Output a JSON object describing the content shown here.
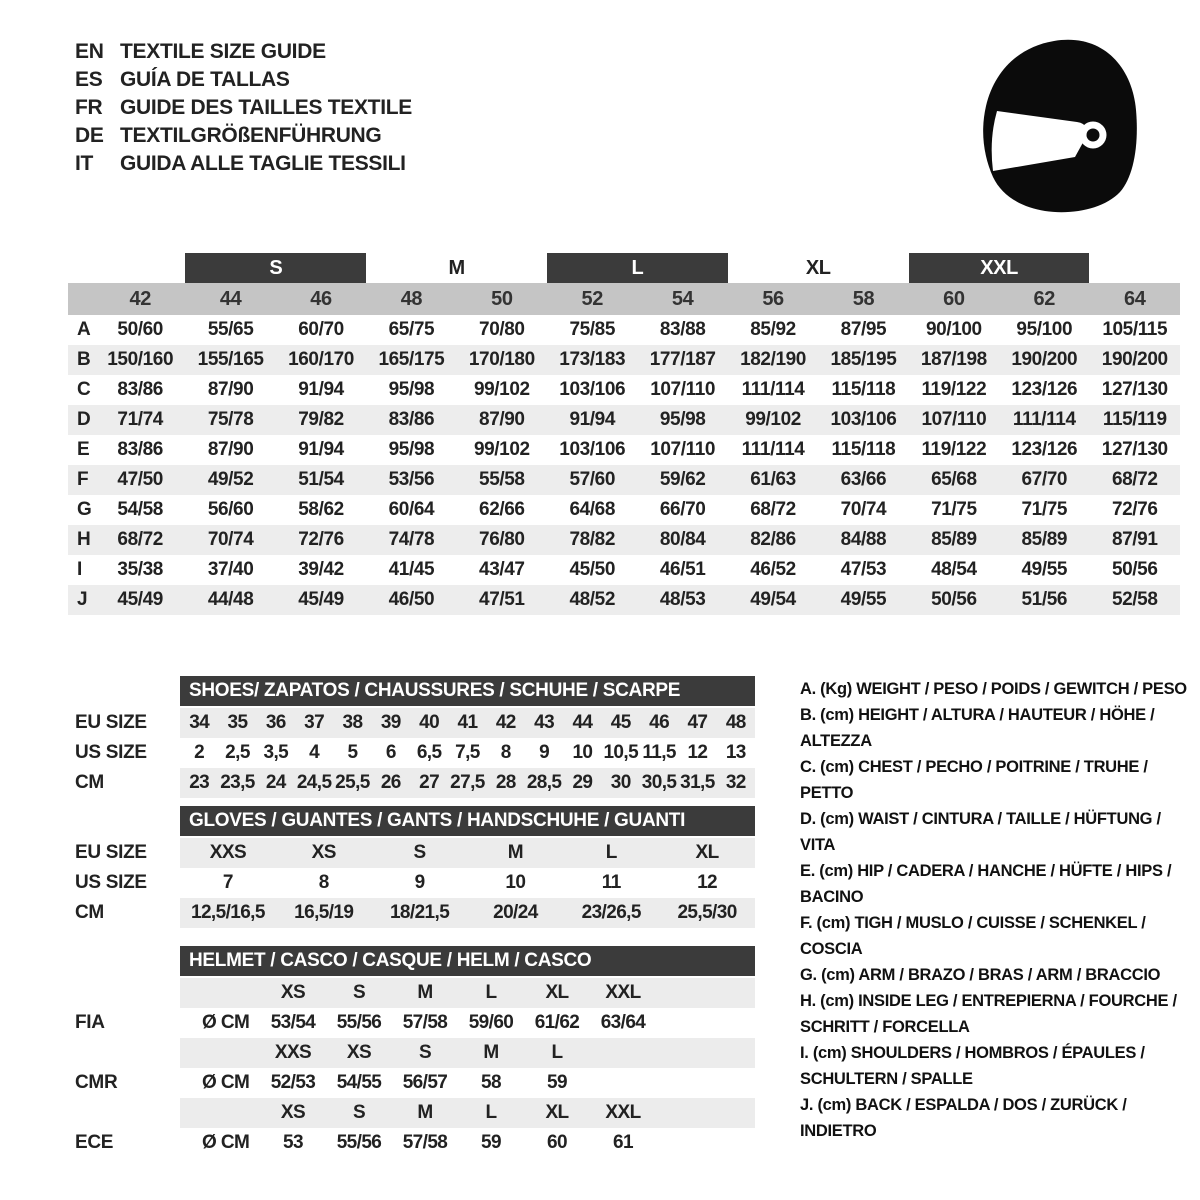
{
  "colors": {
    "dark_bar": "#3b3b3b",
    "gray_band": "#c5c5c5",
    "row_shade": "#ededed",
    "helmet_icon": "#0b0b0b"
  },
  "languages": [
    {
      "code": "EN",
      "title": "TEXTILE SIZE GUIDE"
    },
    {
      "code": "ES",
      "title": "GUÍA DE TALLAS"
    },
    {
      "code": "FR",
      "title": "GUIDE DES TAILLES TEXTILE"
    },
    {
      "code": "DE",
      "title": "TEXTILGRÖßENFÜHRUNG"
    },
    {
      "code": "IT",
      "title": "GUIDA ALLE TAGLIE TESSILI"
    }
  ],
  "helmet_icon_name": "full-face-helmet-icon",
  "main_table": {
    "size_bands": [
      {
        "label": "",
        "span": 2,
        "dark": false
      },
      {
        "label": "S",
        "span": 2,
        "dark": true
      },
      {
        "label": "M",
        "span": 2,
        "dark": false
      },
      {
        "label": "L",
        "span": 2,
        "dark": true
      },
      {
        "label": "XL",
        "span": 2,
        "dark": false
      },
      {
        "label": "XXL",
        "span": 2,
        "dark": true
      },
      {
        "label": "",
        "span": 1,
        "dark": false
      }
    ],
    "columns": [
      "42",
      "44",
      "46",
      "48",
      "50",
      "52",
      "54",
      "56",
      "58",
      "60",
      "62",
      "64"
    ],
    "rows": [
      {
        "letter": "A",
        "values": [
          "50/60",
          "55/65",
          "60/70",
          "65/75",
          "70/80",
          "75/85",
          "83/88",
          "85/92",
          "87/95",
          "90/100",
          "95/100",
          "105/115"
        ]
      },
      {
        "letter": "B",
        "values": [
          "150/160",
          "155/165",
          "160/170",
          "165/175",
          "170/180",
          "173/183",
          "177/187",
          "182/190",
          "185/195",
          "187/198",
          "190/200",
          "190/200"
        ]
      },
      {
        "letter": "C",
        "values": [
          "83/86",
          "87/90",
          "91/94",
          "95/98",
          "99/102",
          "103/106",
          "107/110",
          "111/114",
          "115/118",
          "119/122",
          "123/126",
          "127/130"
        ]
      },
      {
        "letter": "D",
        "values": [
          "71/74",
          "75/78",
          "79/82",
          "83/86",
          "87/90",
          "91/94",
          "95/98",
          "99/102",
          "103/106",
          "107/110",
          "111/114",
          "115/119"
        ]
      },
      {
        "letter": "E",
        "values": [
          "83/86",
          "87/90",
          "91/94",
          "95/98",
          "99/102",
          "103/106",
          "107/110",
          "111/114",
          "115/118",
          "119/122",
          "123/126",
          "127/130"
        ]
      },
      {
        "letter": "F",
        "values": [
          "47/50",
          "49/52",
          "51/54",
          "53/56",
          "55/58",
          "57/60",
          "59/62",
          "61/63",
          "63/66",
          "65/68",
          "67/70",
          "68/72"
        ]
      },
      {
        "letter": "G",
        "values": [
          "54/58",
          "56/60",
          "58/62",
          "60/64",
          "62/66",
          "64/68",
          "66/70",
          "68/72",
          "70/74",
          "71/75",
          "71/75",
          "72/76"
        ]
      },
      {
        "letter": "H",
        "values": [
          "68/72",
          "70/74",
          "72/76",
          "74/78",
          "76/80",
          "78/82",
          "80/84",
          "82/86",
          "84/88",
          "85/89",
          "85/89",
          "87/91"
        ]
      },
      {
        "letter": "I",
        "values": [
          "35/38",
          "37/40",
          "39/42",
          "41/45",
          "43/47",
          "45/50",
          "46/51",
          "46/52",
          "47/53",
          "48/54",
          "49/55",
          "50/56"
        ]
      },
      {
        "letter": "J",
        "values": [
          "45/49",
          "44/48",
          "45/49",
          "46/50",
          "47/51",
          "48/52",
          "48/53",
          "49/54",
          "49/55",
          "50/56",
          "51/56",
          "52/58"
        ]
      }
    ]
  },
  "shoes": {
    "title": "SHOES/ ZAPATOS / CHAUSSURES / SCHUHE / SCARPE",
    "rows": [
      {
        "label": "EU SIZE",
        "shaded": true,
        "cells": [
          "34",
          "35",
          "36",
          "37",
          "38",
          "39",
          "40",
          "41",
          "42",
          "43",
          "44",
          "45",
          "46",
          "47",
          "48"
        ]
      },
      {
        "label": "US SIZE",
        "shaded": false,
        "cells": [
          "2",
          "2,5",
          "3,5",
          "4",
          "5",
          "6",
          "6,5",
          "7,5",
          "8",
          "9",
          "10",
          "10,5",
          "11,5",
          "12",
          "13"
        ]
      },
      {
        "label": "CM",
        "shaded": true,
        "cells": [
          "23",
          "23,5",
          "24",
          "24,5",
          "25,5",
          "26",
          "27",
          "27,5",
          "28",
          "28,5",
          "29",
          "30",
          "30,5",
          "31,5",
          "32"
        ]
      }
    ]
  },
  "gloves": {
    "title": "GLOVES / GUANTES / GANTS / HANDSCHUHE / GUANTI",
    "rows": [
      {
        "label": "EU SIZE",
        "shaded": true,
        "cells": [
          "XXS",
          "XS",
          "S",
          "M",
          "L",
          "XL"
        ]
      },
      {
        "label": "US SIZE",
        "shaded": false,
        "cells": [
          "7",
          "8",
          "9",
          "10",
          "11",
          "12"
        ]
      },
      {
        "label": "CM",
        "shaded": true,
        "cells": [
          "12,5/16,5",
          "16,5/19",
          "18/21,5",
          "20/24",
          "23/26,5",
          "25,5/30"
        ]
      }
    ]
  },
  "helmet": {
    "title": "HELMET / CASCO / CASQUE / HELM / CASCO",
    "rows": [
      {
        "label": "",
        "first": "",
        "shaded": true,
        "cells": [
          "XS",
          "S",
          "M",
          "L",
          "XL",
          "XXL"
        ]
      },
      {
        "label": "FIA",
        "first": "Ø CM",
        "shaded": false,
        "cells": [
          "53/54",
          "55/56",
          "57/58",
          "59/60",
          "61/62",
          "63/64"
        ]
      },
      {
        "label": "",
        "first": "",
        "shaded": true,
        "cells": [
          "XXS",
          "XS",
          "S",
          "M",
          "L",
          ""
        ]
      },
      {
        "label": "CMR",
        "first": "Ø CM",
        "shaded": false,
        "cells": [
          "52/53",
          "54/55",
          "56/57",
          "58",
          "59",
          ""
        ]
      },
      {
        "label": "",
        "first": "",
        "shaded": true,
        "cells": [
          "XS",
          "S",
          "M",
          "L",
          "XL",
          "XXL"
        ]
      },
      {
        "label": "ECE",
        "first": "Ø CM",
        "shaded": false,
        "cells": [
          "53",
          "55/56",
          "57/58",
          "59",
          "60",
          "61"
        ]
      }
    ]
  },
  "legend": [
    "A. (Kg) WEIGHT / PESO / POIDS / GEWITCH / PESO",
    "B. (cm) HEIGHT / ALTURA / HAUTEUR / HÖHE / ALTEZZA",
    "C. (cm) CHEST / PECHO / POITRINE / TRUHE / PETTO",
    "D. (cm) WAIST / CINTURA / TAILLE / HÜFTUNG / VITA",
    "E. (cm) HIP / CADERA / HANCHE / HÜFTE / HIPS /  BACINO",
    "F. (cm) TIGH / MUSLO / CUISSE / SCHENKEL / COSCIA",
    "G. (cm) ARM  / BRAZO / BRAS / ARM / BRACCIO",
    "H. (cm) INSIDE LEG / ENTREPIERNA / FOURCHE / SCHRITT / FORCELLA",
    "I.  (cm) SHOULDERS / HOMBROS / ÉPAULES / SCHULTERN / SPALLE",
    "J. (cm) BACK / ESPALDA / DOS / ZURÜCK / INDIETRO"
  ]
}
